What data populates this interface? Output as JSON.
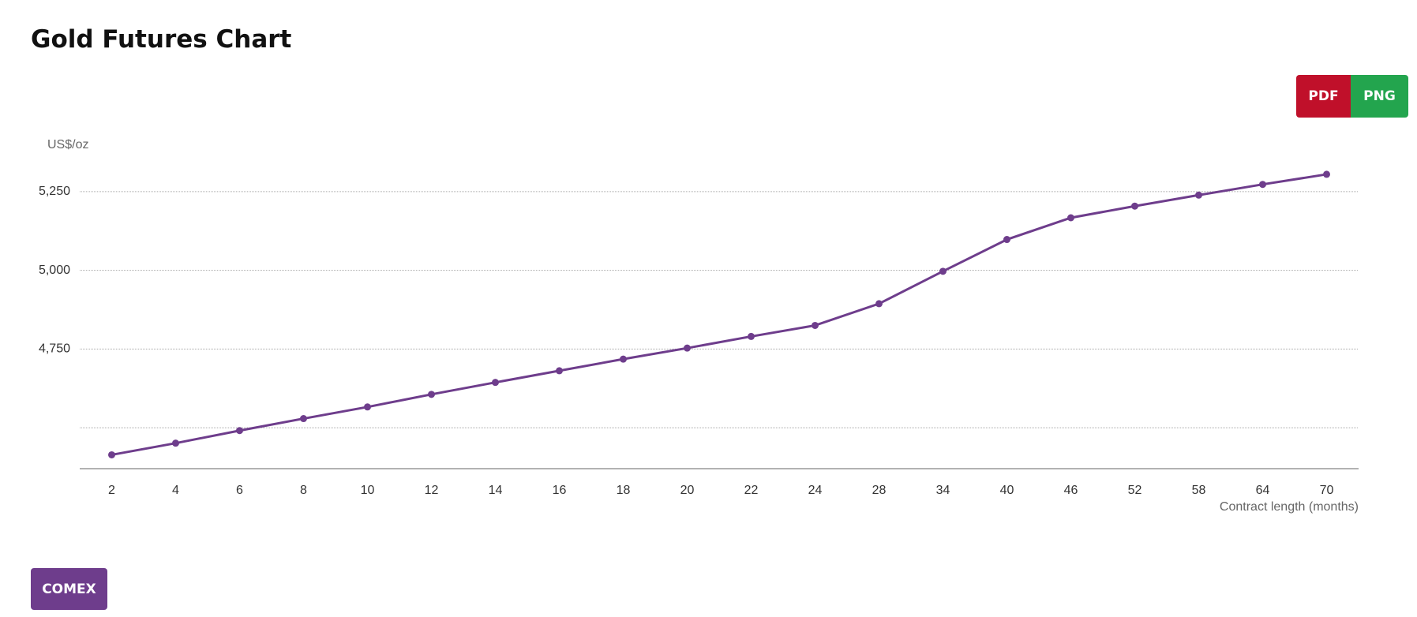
{
  "header": {
    "title": "Gold Futures Chart",
    "buttons": [
      "PDF",
      "PNG"
    ]
  },
  "chart_data": {
    "type": "line",
    "y_axis_title": "US$/oz",
    "x_axis_title": "Contract length (months)",
    "categories": [
      "2",
      "4",
      "6",
      "8",
      "10",
      "12",
      "14",
      "16",
      "18",
      "20",
      "22",
      "24",
      "28",
      "34",
      "40",
      "46",
      "52",
      "58",
      "64",
      "70"
    ],
    "series": [
      {
        "color": "#6e3d8c",
        "values": [
          4414,
          4451,
          4491,
          4529,
          4566,
          4606,
          4644,
          4681,
          4718,
          4753,
          4790,
          4825,
          4894,
          4997,
          5098,
          5167,
          5204,
          5239,
          5273,
          5305
        ]
      }
    ],
    "ylim": [
      4370,
      5370
    ],
    "yticks": [
      {
        "value": 4500
      },
      {
        "value": 4750,
        "label": "4,750"
      },
      {
        "value": 5000,
        "label": "5,000"
      },
      {
        "value": 5250,
        "label": "5,250"
      }
    ],
    "grid": true
  },
  "footer": {
    "button": "COMEX"
  }
}
